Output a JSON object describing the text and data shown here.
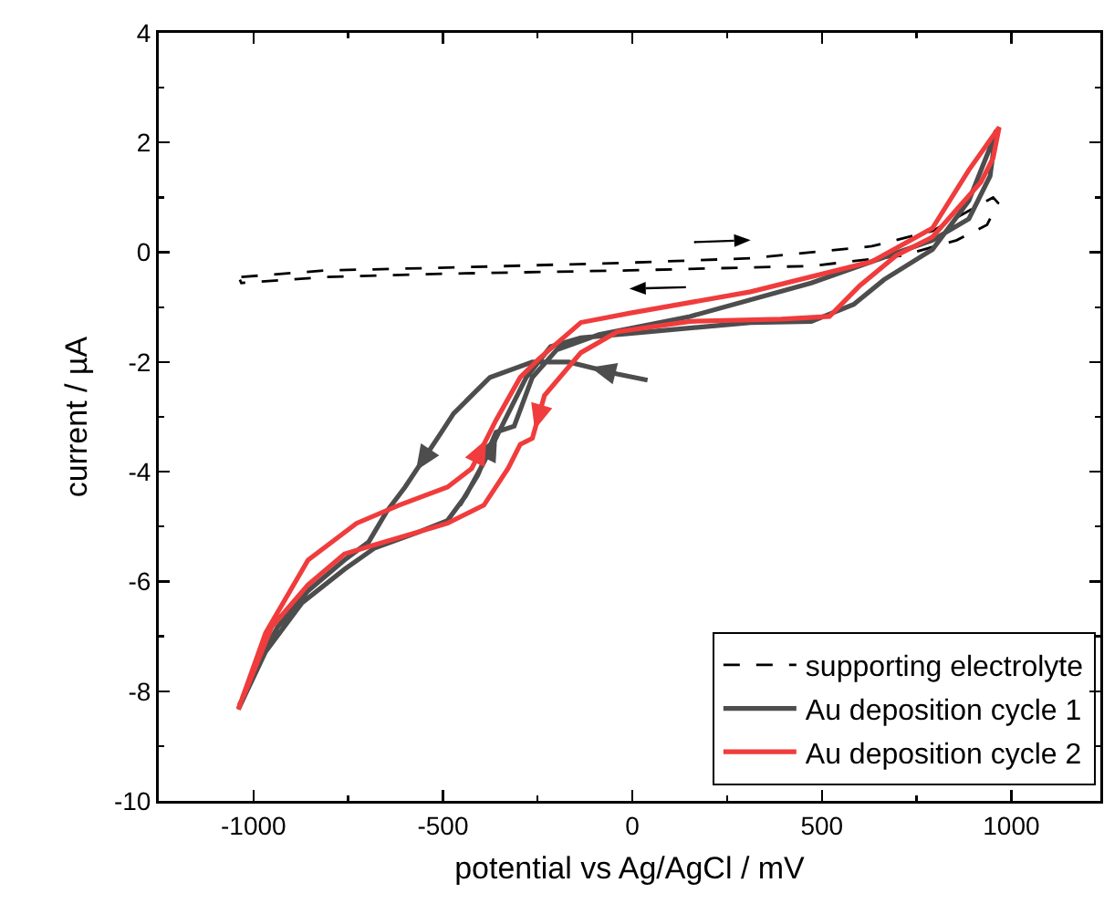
{
  "chart_data": {
    "type": "line",
    "xlabel": "potential vs Ag/AgCl / mV",
    "ylabel": "current / µA",
    "xlim": [
      -1250,
      1235
    ],
    "ylim": [
      -10,
      4
    ],
    "xticks": [
      -1000,
      -500,
      0,
      500,
      1000
    ],
    "yticks": [
      -10,
      -8,
      -6,
      -4,
      -2,
      0,
      2,
      4
    ],
    "grid": false,
    "legend": "bottom right",
    "marker": "none",
    "series": [
      {
        "name": "supporting electrolyte",
        "color": "#000000",
        "line_style": "dashed",
        "x": [
          -1032,
          -808,
          -488,
          -8,
          312,
          632,
          792,
          952,
          965,
          936,
          856,
          712,
          472,
          -8,
          -488,
          -808,
          -1032,
          -1036
        ],
        "values": [
          -0.45,
          -0.33,
          -0.28,
          -0.19,
          -0.11,
          0.11,
          0.39,
          1.0,
          0.9,
          0.5,
          0.22,
          -0.06,
          -0.25,
          -0.33,
          -0.39,
          -0.45,
          -0.56,
          -0.5
        ]
      },
      {
        "name": "Au deposition cycle 1",
        "color": "#4d4d4d",
        "line_style": "solid",
        "x": [
          40,
          -40,
          -168,
          -264,
          -376,
          -472,
          -504,
          -600,
          -648,
          -696,
          -760,
          -856,
          -936,
          -1000,
          -1040,
          -968,
          -872,
          -760,
          -680,
          -568,
          -488,
          -440,
          -392,
          -328,
          -280,
          -216,
          -136,
          -8,
          312,
          472,
          584,
          664,
          792,
          888,
          952,
          960,
          944,
          888,
          792,
          632,
          472,
          152,
          -88,
          -200,
          -264,
          -312,
          -360,
          -408,
          -456
        ],
        "values": [
          -2.33,
          -2.22,
          -2.0,
          -2.0,
          -2.28,
          -2.94,
          -3.28,
          -4.28,
          -4.72,
          -5.28,
          -5.61,
          -6.17,
          -6.83,
          -7.61,
          -8.33,
          -7.28,
          -6.39,
          -5.78,
          -5.39,
          -5.11,
          -4.89,
          -4.44,
          -3.83,
          -2.94,
          -2.28,
          -1.72,
          -1.56,
          -1.48,
          -1.28,
          -1.26,
          -0.95,
          -0.5,
          0.05,
          0.94,
          2.05,
          2.22,
          1.39,
          0.61,
          0.22,
          -0.17,
          -0.56,
          -1.17,
          -1.5,
          -1.78,
          -2.28,
          -3.17,
          -3.28,
          -4.06,
          -4.61
        ]
      },
      {
        "name": "Au deposition cycle 2",
        "color": "#f03c3c",
        "line_style": "solid",
        "x": [
          -1040,
          -968,
          -856,
          -728,
          -616,
          -488,
          -424,
          -360,
          -296,
          -248,
          -136,
          -8,
          312,
          632,
          792,
          888,
          968,
          952,
          920,
          792,
          696,
          600,
          520,
          392,
          152,
          -40,
          -136,
          -232,
          -264,
          -296,
          -328,
          -392,
          -488,
          -600,
          -680,
          -760,
          -856,
          -952,
          -1024,
          -1038
        ],
        "values": [
          -8.33,
          -6.94,
          -5.61,
          -4.94,
          -4.61,
          -4.28,
          -3.94,
          -3.06,
          -2.28,
          -1.95,
          -1.28,
          -1.11,
          -0.72,
          -0.17,
          0.44,
          1.5,
          2.28,
          1.72,
          1.28,
          0.28,
          -0.06,
          -0.61,
          -1.17,
          -1.22,
          -1.26,
          -1.45,
          -1.83,
          -2.61,
          -3.39,
          -3.5,
          -3.94,
          -4.61,
          -4.94,
          -5.17,
          -5.33,
          -5.5,
          -6.06,
          -6.83,
          -8.06,
          -8.26
        ]
      }
    ]
  }
}
